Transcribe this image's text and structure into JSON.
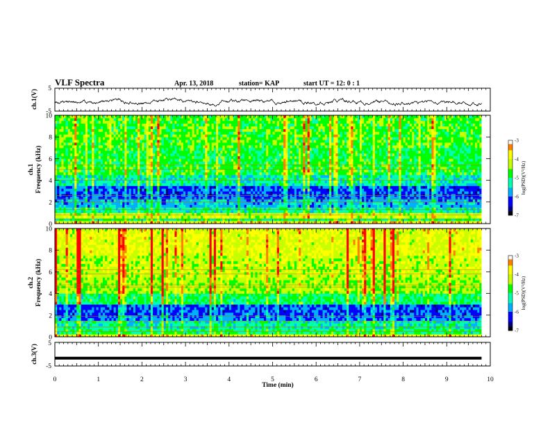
{
  "header": {
    "title": "VLF Spectra",
    "date": "Apr. 13, 2018",
    "station": "station= KAP",
    "start": "start  UT =   12: 0  : 1"
  },
  "colors": {
    "spectrum": [
      "#000080",
      "#0000ff",
      "#00b0ff",
      "#00ffb0",
      "#00ff00",
      "#c8ff00",
      "#ffff00",
      "#ff8000",
      "#ff0000",
      "#ffffff"
    ],
    "trace": "#000000",
    "band_line": "#b87800"
  },
  "chart_data": [
    {
      "type": "line",
      "panel": "ch1_waveform",
      "ylabel": "ch.1(V)",
      "ylim": [
        -5,
        5
      ],
      "ytick_labels": [
        "5",
        "-5"
      ],
      "x_range_min": [
        0,
        9.8
      ],
      "series": [
        {
          "mean": -1,
          "noise": "fluctuating approx. -3 to 1"
        }
      ]
    },
    {
      "type": "heatmap",
      "panel": "ch1_spectrogram",
      "ylabel": "ch.1\nFrequency  (kHz)",
      "ylabel_line1": "ch.1",
      "ylabel_line2": "Frequency  (kHz)",
      "ylim": [
        0,
        10
      ],
      "ytick_labels": [
        "0",
        "2",
        "4",
        "6",
        "8",
        "10"
      ],
      "x_range_min": [
        0,
        9.8
      ],
      "bands": [
        {
          "f": [
            0.0,
            0.3
          ],
          "log_psd": -3.8
        },
        {
          "f": [
            0.3,
            0.6
          ],
          "log_psd": -5.0
        },
        {
          "f": [
            0.6,
            1.0
          ],
          "log_psd": -4.2
        },
        {
          "f": [
            1.0,
            1.6
          ],
          "log_psd": -5.2
        },
        {
          "f": [
            1.6,
            2.2
          ],
          "log_psd": -5.7
        },
        {
          "f": [
            2.2,
            3.4
          ],
          "log_psd": -6.1
        },
        {
          "f": [
            3.4,
            4.6
          ],
          "log_psd": -5.3
        },
        {
          "f": [
            4.6,
            5.6
          ],
          "log_psd": -4.8
        },
        {
          "f": [
            5.6,
            7.0
          ],
          "log_psd": -4.9
        },
        {
          "f": [
            7.0,
            10.0
          ],
          "log_psd": -4.7
        }
      ],
      "lines_khz": [
        0.4,
        0.8,
        1.3,
        2.0,
        2.3,
        2.6,
        4.0,
        5.0,
        5.4
      ]
    },
    {
      "type": "heatmap",
      "panel": "ch2_spectrogram",
      "ylabel": "ch.2\nFrequency  (kHz)",
      "ylabel_line1": "ch.2",
      "ylabel_line2": "Frequency  (kHz)",
      "ylim": [
        0,
        10
      ],
      "ytick_labels": [
        "0",
        "2",
        "4",
        "6",
        "8",
        "10"
      ],
      "x_range_min": [
        0,
        9.8
      ],
      "bands": [
        {
          "f": [
            0.0,
            0.3
          ],
          "log_psd": -3.9
        },
        {
          "f": [
            0.3,
            0.8
          ],
          "log_psd": -5.0
        },
        {
          "f": [
            0.8,
            1.5
          ],
          "log_psd": -5.3
        },
        {
          "f": [
            1.5,
            2.0
          ],
          "log_psd": -5.9
        },
        {
          "f": [
            2.0,
            3.0
          ],
          "log_psd": -6.1
        },
        {
          "f": [
            3.0,
            4.0
          ],
          "log_psd": -5.0
        },
        {
          "f": [
            4.0,
            5.5
          ],
          "log_psd": -4.4
        },
        {
          "f": [
            5.5,
            7.5
          ],
          "log_psd": -4.2
        },
        {
          "f": [
            7.5,
            10.0
          ],
          "log_psd": -4.0
        }
      ],
      "lines_khz": [
        0.5,
        0.9,
        1.4,
        1.9,
        4.6,
        4.8,
        5.8,
        6.2
      ]
    },
    {
      "type": "line",
      "panel": "ch3_waveform",
      "ylabel": "ch.3(V)",
      "ylim": [
        -5,
        5
      ],
      "ytick_labels": [
        "5",
        "-5"
      ],
      "x_range_min": [
        0,
        9.8
      ],
      "series": [
        {
          "mean": -1.7,
          "noise": "flat"
        }
      ]
    },
    {
      "type": "colorbar",
      "label": "log(PSD)(V²/Hz)",
      "range": [
        -7,
        -3
      ],
      "tick_labels": [
        "-3",
        "-4",
        "-5",
        "-6",
        "-7"
      ]
    }
  ],
  "x_axis": {
    "label": "Time  (min)",
    "range": [
      0,
      10
    ],
    "tick_labels": [
      "0",
      "1",
      "2",
      "3",
      "4",
      "5",
      "6",
      "7",
      "8",
      "9",
      "10"
    ]
  }
}
